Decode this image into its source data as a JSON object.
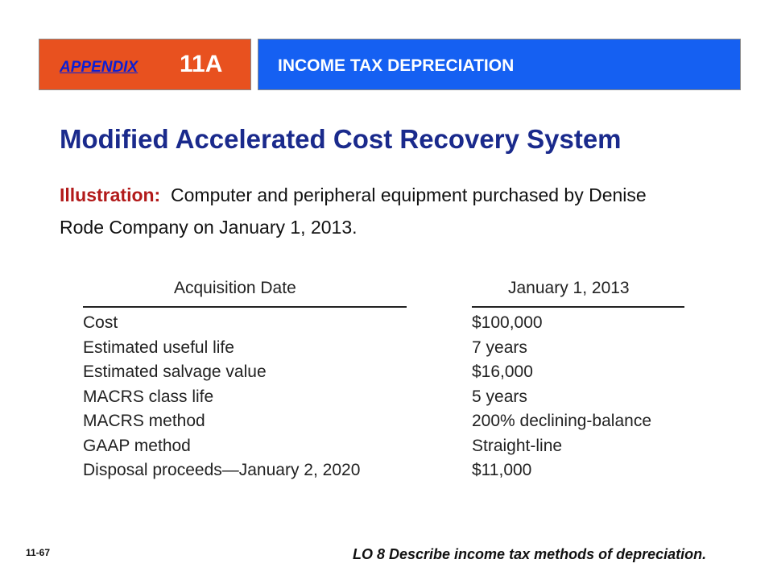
{
  "header": {
    "appendix_word": "APPENDIX",
    "appendix_number": "11A",
    "topic": "INCOME TAX DEPRECIATION"
  },
  "title": "Modified Accelerated Cost Recovery System",
  "illustration": {
    "label": "Illustration:",
    "text": "Computer and peripheral equipment purchased by Denise Rode Company on January 1, 2013."
  },
  "table": {
    "col_label_header": "Acquisition Date",
    "col_value_header": "January 1, 2013",
    "rows": [
      {
        "label": "Cost",
        "value": "$100,000"
      },
      {
        "label": "Estimated useful life",
        "value": "7 years"
      },
      {
        "label": "Estimated salvage value",
        "value": "$16,000"
      },
      {
        "label": "MACRS class life",
        "value": "5 years"
      },
      {
        "label": "MACRS method",
        "value": "200% declining-balance"
      },
      {
        "label": "GAAP method",
        "value": "Straight-line"
      },
      {
        "label": "Disposal proceeds—January 2, 2020",
        "value": "$11,000"
      }
    ]
  },
  "footer": {
    "page_number": "11-67",
    "learning_objective": "LO 8  Describe income tax methods of depreciation."
  },
  "colors": {
    "appendix_box": "#e8511f",
    "topic_box": "#1560f2",
    "title": "#1a2a8c",
    "illustration_label": "#b21a1a"
  }
}
